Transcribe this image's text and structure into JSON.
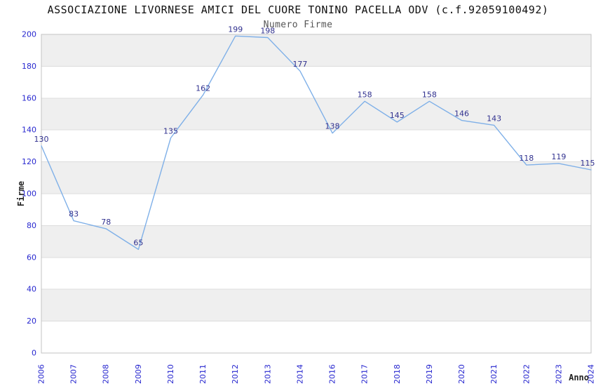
{
  "chart_data": {
    "type": "line",
    "title": "ASSOCIAZIONE LIVORNESE AMICI DEL CUORE TONINO PACELLA ODV (c.f.92059100492)",
    "subtitle": "Numero Firme",
    "xlabel": "Anno",
    "ylabel": "Firme",
    "categories": [
      "2006",
      "2007",
      "2008",
      "2009",
      "2010",
      "2011",
      "2012",
      "2013",
      "2014",
      "2016",
      "2017",
      "2018",
      "2019",
      "2020",
      "2021",
      "2022",
      "2023",
      "2024"
    ],
    "values": [
      130,
      83,
      78,
      65,
      135,
      162,
      199,
      198,
      177,
      138,
      158,
      145,
      158,
      146,
      143,
      118,
      119,
      115
    ],
    "ylim": [
      0,
      200
    ],
    "ytick_step": 20,
    "grid": true,
    "legend_position": "none",
    "band_fill": "alternating",
    "colors": {
      "line": "#7fb0e8",
      "data_label": "#31318f",
      "tick_label": "#2727cf",
      "band": "#efefef",
      "grid": "#dcdcdc",
      "border": "#c3c3c3",
      "title": "#111111",
      "subtitle": "#555555",
      "axis_title": "#222222",
      "background": "#ffffff"
    }
  }
}
